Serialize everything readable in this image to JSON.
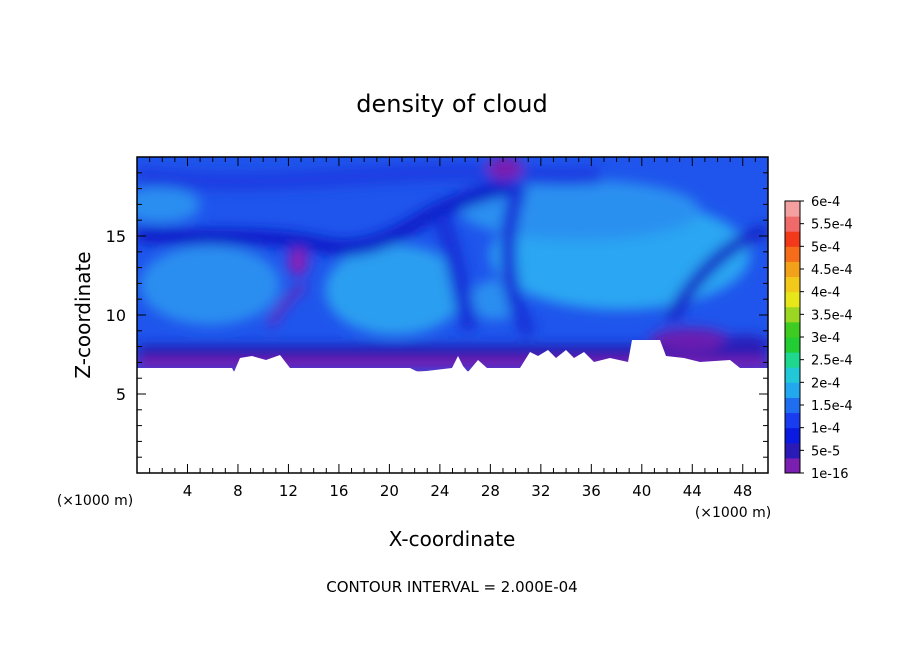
{
  "chart_data": {
    "type": "heatmap",
    "title": "density of cloud",
    "xlabel": "X-coordinate",
    "ylabel": "Z-coordinate",
    "x_unit_left": "(×1000 m)",
    "x_unit_right": "(×1000 m)",
    "footer": "CONTOUR INTERVAL = 2.000E-04",
    "xlim": [
      0,
      50
    ],
    "ylim": [
      0,
      20
    ],
    "x_ticks": [
      "4",
      "8",
      "12",
      "16",
      "20",
      "24",
      "28",
      "32",
      "36",
      "40",
      "44",
      "48"
    ],
    "y_ticks": [
      "5",
      "10",
      "15"
    ],
    "colorbar": {
      "labels": [
        "1e-16",
        "5e-5",
        "1e-4",
        "1.5e-4",
        "2e-4",
        "2.5e-4",
        "3e-4",
        "3.5e-4",
        "4e-4",
        "4.5e-4",
        "5e-4",
        "5.5e-4",
        "6e-4"
      ],
      "colors": [
        "#7a1fb0",
        "#2a1ab8",
        "#0a1ae0",
        "#1a3cf0",
        "#1f6ef0",
        "#21a8ee",
        "#22c8d8",
        "#1fd890",
        "#22cc33",
        "#3fcc22",
        "#9ad622",
        "#e6e61a",
        "#f2c81a",
        "#f2a21a",
        "#f56c1a",
        "#f23a1a",
        "#f06a6a",
        "#f4a0a0"
      ]
    },
    "cloud_base_z_km": 6.7,
    "notes_values": {
      "cloud_top_z_km": 20,
      "dominant_level": "1e-4 to 1.5e-4"
    }
  }
}
